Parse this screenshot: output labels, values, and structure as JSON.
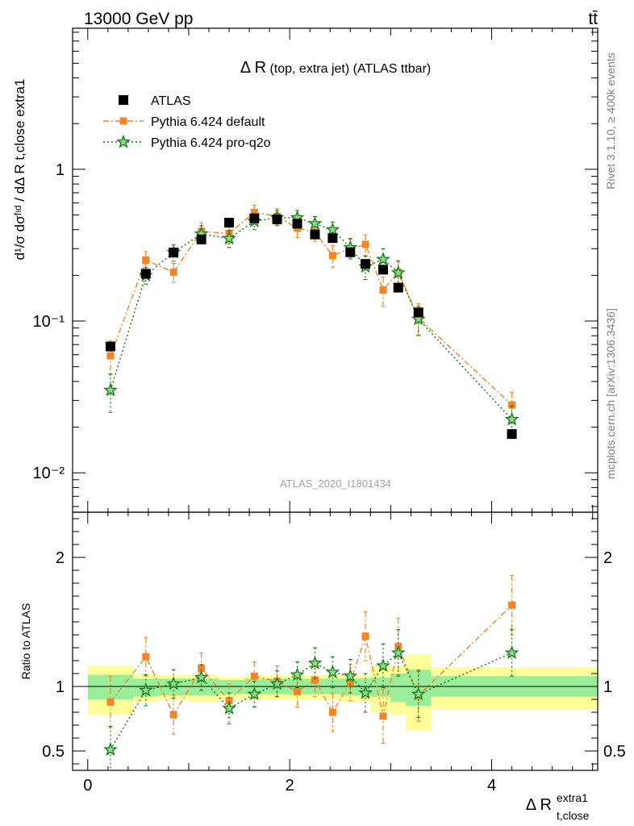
{
  "header": {
    "energy_label": "13000 GeV pp",
    "process_label": "tt̄",
    "title_main": "Δ R",
    "title_rest": "(top, extra jet) (ATLAS ttbar)",
    "analysis_id": "ATLAS_2020_I1801434",
    "rivet_label": "Rivet 3.1.10, ≥ 400k events",
    "mcplots_label": "mcplots.cern.ch [arXiv:1306.3436]"
  },
  "axes": {
    "ylabel_main": "d¹/σ dσᶠᶦᵈ / dΔ R t,close extra1",
    "ylabel_ratio": "Ratio to ATLAS",
    "xlabel": "Δ R",
    "xlabel_sub": "t,close",
    "xlabel_sup": "extra1"
  },
  "chart_data": {
    "type": "scatter",
    "x_range": [
      -0.15,
      5.05
    ],
    "main": {
      "y_scale": "log",
      "y_range": [
        0.0055,
        8.5
      ],
      "y_ticks": [
        {
          "value": 1,
          "label": "1"
        },
        {
          "value": 0.1,
          "label": "10⁻¹"
        },
        {
          "value": 0.01,
          "label": "10⁻²"
        }
      ]
    },
    "ratio": {
      "y_scale": "linear",
      "y_range": [
        0.35,
        2.35
      ],
      "y_ticks": [
        {
          "value": 2,
          "label": "2"
        },
        {
          "value": 1,
          "label": "1"
        },
        {
          "value": 0.5,
          "label": "0.5"
        }
      ],
      "band_segments": [
        {
          "x0": 0.0,
          "x1": 0.45,
          "in_lo": 0.9,
          "in_hi": 1.09,
          "out_lo": 0.78,
          "out_hi": 1.16
        },
        {
          "x0": 0.45,
          "x1": 0.7,
          "in_lo": 0.92,
          "in_hi": 1.06,
          "out_lo": 0.88,
          "out_hi": 1.1
        },
        {
          "x0": 0.7,
          "x1": 1.0,
          "in_lo": 0.93,
          "in_hi": 1.06,
          "out_lo": 0.9,
          "out_hi": 1.09
        },
        {
          "x0": 1.0,
          "x1": 1.3,
          "in_lo": 0.93,
          "in_hi": 1.06,
          "out_lo": 0.88,
          "out_hi": 1.09
        },
        {
          "x0": 1.3,
          "x1": 1.55,
          "in_lo": 0.94,
          "in_hi": 1.05,
          "out_lo": 0.9,
          "out_hi": 1.07
        },
        {
          "x0": 1.55,
          "x1": 2.5,
          "in_lo": 0.94,
          "in_hi": 1.06,
          "out_lo": 0.9,
          "out_hi": 1.09
        },
        {
          "x0": 2.5,
          "x1": 2.8,
          "in_lo": 0.93,
          "in_hi": 1.06,
          "out_lo": 0.88,
          "out_hi": 1.09
        },
        {
          "x0": 2.8,
          "x1": 3.0,
          "in_lo": 0.92,
          "in_hi": 1.07,
          "out_lo": 0.8,
          "out_hi": 1.16
        },
        {
          "x0": 3.0,
          "x1": 3.15,
          "in_lo": 0.88,
          "in_hi": 1.1,
          "out_lo": 0.78,
          "out_hi": 1.16
        },
        {
          "x0": 3.15,
          "x1": 3.4,
          "in_lo": 0.85,
          "in_hi": 1.13,
          "out_lo": 0.66,
          "out_hi": 1.25
        },
        {
          "x0": 3.4,
          "x1": 5.05,
          "in_lo": 0.92,
          "in_hi": 1.08,
          "out_lo": 0.82,
          "out_hi": 1.15
        }
      ]
    },
    "series": [
      {
        "name": "ATLAS",
        "color": "#000000",
        "marker": "square",
        "x": [
          0.225,
          0.575,
          0.85,
          1.125,
          1.4,
          1.65,
          1.875,
          2.075,
          2.25,
          2.425,
          2.6,
          2.75,
          2.925,
          3.075,
          3.275,
          4.2
        ],
        "y": [
          0.068,
          0.205,
          0.283,
          0.345,
          0.445,
          0.475,
          0.468,
          0.438,
          0.372,
          0.352,
          0.284,
          0.238,
          0.218,
          0.166,
          0.114,
          0.018
        ],
        "err": [
          0.005,
          0.01,
          0.012,
          0.015,
          0.016,
          0.017,
          0.017,
          0.016,
          0.014,
          0.014,
          0.012,
          0.011,
          0.01,
          0.008,
          0.007,
          0.001
        ],
        "ratio": [
          1,
          1,
          1,
          1,
          1,
          1,
          1,
          1,
          1,
          1,
          1,
          1,
          1,
          1,
          1,
          1
        ]
      },
      {
        "name": "Pythia 6.424 default",
        "color": "#f58426",
        "marker": "square-small",
        "line": "dashdot",
        "x": [
          0.225,
          0.575,
          0.85,
          1.125,
          1.4,
          1.65,
          1.875,
          2.075,
          2.25,
          2.425,
          2.6,
          2.75,
          2.925,
          3.075,
          3.275,
          4.2
        ],
        "y": [
          0.059,
          0.252,
          0.21,
          0.39,
          0.378,
          0.52,
          0.49,
          0.41,
          0.385,
          0.27,
          0.3,
          0.32,
          0.16,
          0.21,
          0.105,
          0.028
        ],
        "err": [
          0.015,
          0.035,
          0.03,
          0.055,
          0.055,
          0.06,
          0.06,
          0.055,
          0.05,
          0.045,
          0.045,
          0.05,
          0.035,
          0.04,
          0.025,
          0.006
        ],
        "ratio": [
          0.88,
          1.23,
          0.78,
          1.14,
          0.89,
          1.08,
          1.04,
          0.96,
          1.05,
          0.8,
          1.03,
          1.39,
          0.77,
          1.31,
          0.93,
          1.63
        ],
        "ratio_err": [
          0.2,
          0.15,
          0.15,
          0.12,
          0.13,
          0.11,
          0.12,
          0.12,
          0.13,
          0.15,
          0.14,
          0.19,
          0.21,
          0.22,
          0.2,
          0.23
        ]
      },
      {
        "name": "Pythia 6.424 pro-q2o",
        "color": "#117a11",
        "marker": "star",
        "line": "dotted",
        "x": [
          0.225,
          0.575,
          0.85,
          1.125,
          1.4,
          1.65,
          1.875,
          2.075,
          2.25,
          2.425,
          2.6,
          2.75,
          2.925,
          3.075,
          3.275,
          4.2
        ],
        "y": [
          0.035,
          0.2,
          0.283,
          0.375,
          0.35,
          0.455,
          0.48,
          0.48,
          0.438,
          0.4,
          0.305,
          0.228,
          0.255,
          0.208,
          0.103,
          0.0225
        ],
        "err": [
          0.01,
          0.025,
          0.035,
          0.05,
          0.045,
          0.055,
          0.055,
          0.055,
          0.05,
          0.05,
          0.045,
          0.04,
          0.045,
          0.04,
          0.022,
          0.005
        ],
        "ratio": [
          0.51,
          0.97,
          1.02,
          1.07,
          0.83,
          0.94,
          1.02,
          1.09,
          1.18,
          1.11,
          1.08,
          0.95,
          1.16,
          1.26,
          0.94,
          1.26
        ],
        "ratio_err": [
          0.18,
          0.12,
          0.11,
          0.1,
          0.12,
          0.1,
          0.1,
          0.1,
          0.12,
          0.12,
          0.13,
          0.15,
          0.17,
          0.18,
          0.18,
          0.18
        ]
      }
    ]
  }
}
